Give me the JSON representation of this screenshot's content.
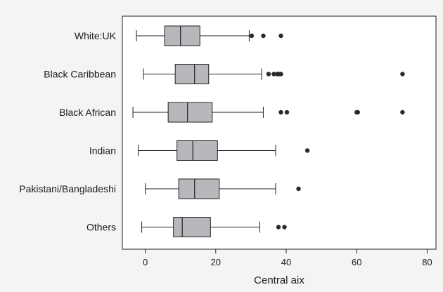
{
  "chart_data": {
    "type": "boxplot",
    "orientation": "horizontal",
    "xlabel": "Central aix",
    "xlim": [
      -6.5,
      82.5
    ],
    "xticks": [
      0,
      20,
      40,
      60,
      80
    ],
    "grid": false,
    "box_color": "#b8b8bc",
    "outlier_color": "#2a2a2a",
    "categories": [
      "White:UK",
      "Black Caribbean",
      "Black African",
      "Indian",
      "Pakistani/Bangladeshi",
      "Others"
    ],
    "series": [
      {
        "category": "White:UK",
        "whisker_low": -2.5,
        "q1": 5.5,
        "median": 10,
        "q3": 15.5,
        "whisker_high": 29.5,
        "outliers": [
          30.2,
          33.5,
          38.5
        ]
      },
      {
        "category": "Black Caribbean",
        "whisker_low": -0.5,
        "q1": 8.5,
        "median": 14,
        "q3": 18,
        "whisker_high": 33,
        "outliers": [
          35,
          36.5,
          37.5,
          38,
          38.5,
          73
        ]
      },
      {
        "category": "Black African",
        "whisker_low": -3.5,
        "q1": 6.5,
        "median": 12,
        "q3": 19,
        "whisker_high": 33.5,
        "outliers": [
          38.5,
          40.2,
          60,
          60.3,
          73
        ]
      },
      {
        "category": "Indian",
        "whisker_low": -2,
        "q1": 9,
        "median": 13.5,
        "q3": 20.5,
        "whisker_high": 37,
        "outliers": [
          46
        ]
      },
      {
        "category": "Pakistani/Bangladeshi",
        "whisker_low": 0,
        "q1": 9.5,
        "median": 14,
        "q3": 21,
        "whisker_high": 37,
        "outliers": [
          43.5
        ]
      },
      {
        "category": "Others",
        "whisker_low": -1,
        "q1": 8,
        "median": 10.5,
        "q3": 18.5,
        "whisker_high": 32.5,
        "outliers": [
          37.8,
          39.5
        ]
      }
    ]
  }
}
